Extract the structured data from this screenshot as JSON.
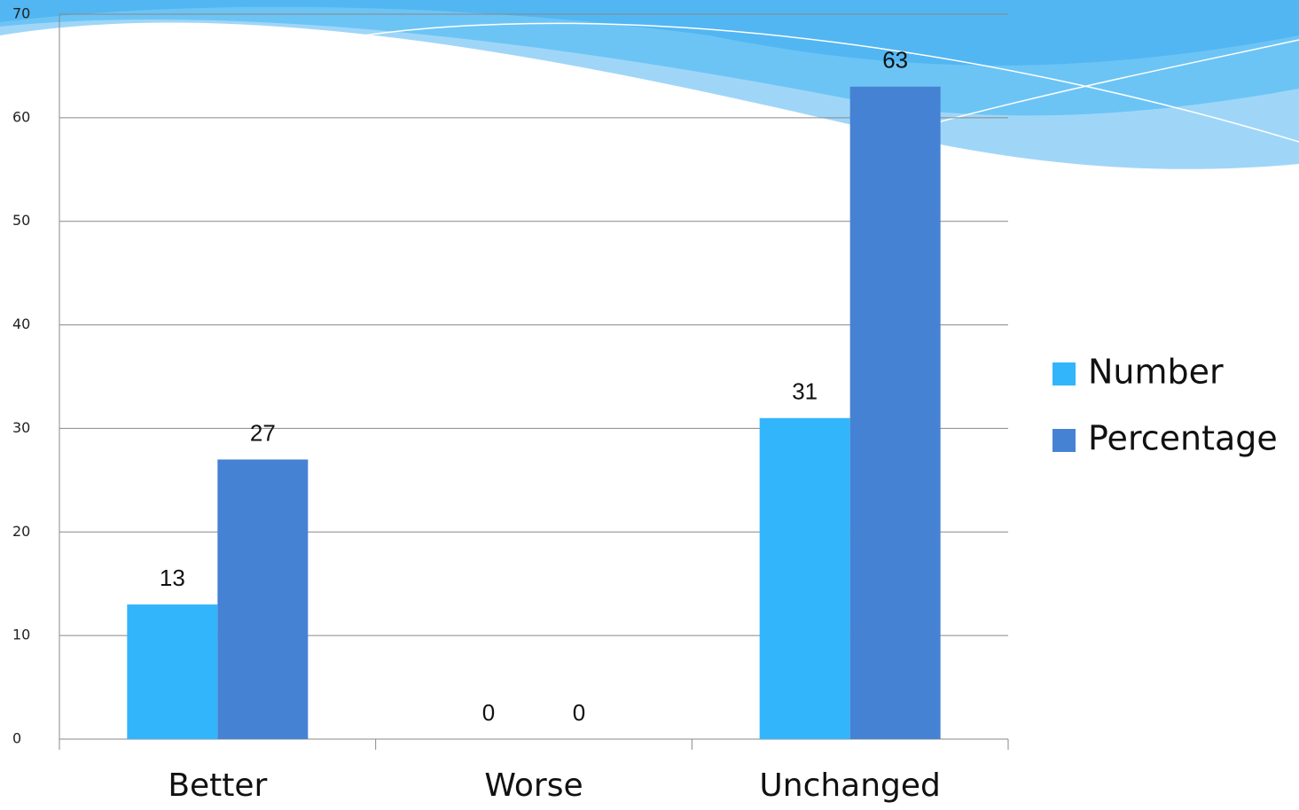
{
  "chart_data": {
    "type": "bar",
    "categories": [
      "Better",
      "Worse",
      "Unchanged"
    ],
    "series": [
      {
        "name": "Number",
        "color": "#33b5fb",
        "values": [
          13,
          0,
          31
        ]
      },
      {
        "name": "Percentage",
        "color": "#4682d3",
        "values": [
          27,
          0,
          63
        ]
      }
    ],
    "ylim": [
      0,
      70
    ],
    "yticks": [
      0,
      10,
      20,
      30,
      40,
      50,
      60,
      70
    ],
    "grid": true,
    "legend": "right"
  }
}
